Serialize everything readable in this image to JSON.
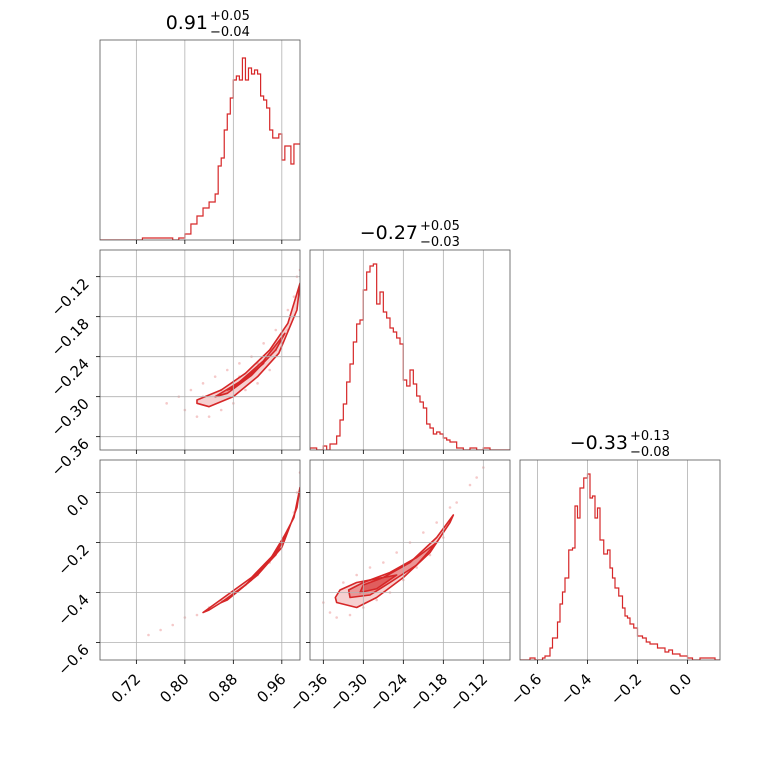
{
  "chart_data": {
    "type": "corner",
    "color": "#d62728",
    "grid": true,
    "parameters": [
      {
        "title": {
          "median": "0.91",
          "upper": "+0.05",
          "lower": "−0.04"
        },
        "range": [
          0.66,
          0.99
        ],
        "ticks": [
          "0.72",
          "0.80",
          "0.88",
          "0.96"
        ],
        "tick_values": [
          0.72,
          0.8,
          0.88,
          0.96
        ],
        "histogram": [
          [
            0.66,
            0.0
          ],
          [
            0.71,
            0.0
          ],
          [
            0.73,
            0.01
          ],
          [
            0.76,
            0.01
          ],
          [
            0.78,
            0.0
          ],
          [
            0.79,
            0.01
          ],
          [
            0.8,
            0.03
          ],
          [
            0.81,
            0.08
          ],
          [
            0.82,
            0.12
          ],
          [
            0.83,
            0.16
          ],
          [
            0.84,
            0.19
          ],
          [
            0.85,
            0.23
          ],
          [
            0.855,
            0.37
          ],
          [
            0.86,
            0.41
          ],
          [
            0.865,
            0.55
          ],
          [
            0.87,
            0.63
          ],
          [
            0.875,
            0.71
          ],
          [
            0.88,
            0.8
          ],
          [
            0.885,
            0.82
          ],
          [
            0.89,
            0.8
          ],
          [
            0.895,
            0.91
          ],
          [
            0.9,
            0.8
          ],
          [
            0.905,
            0.86
          ],
          [
            0.91,
            0.83
          ],
          [
            0.915,
            0.85
          ],
          [
            0.92,
            0.83
          ],
          [
            0.925,
            0.72
          ],
          [
            0.93,
            0.7
          ],
          [
            0.935,
            0.66
          ],
          [
            0.94,
            0.55
          ],
          [
            0.945,
            0.51
          ],
          [
            0.955,
            0.53
          ],
          [
            0.96,
            0.4
          ],
          [
            0.965,
            0.47
          ],
          [
            0.975,
            0.38
          ],
          [
            0.98,
            0.48
          ]
        ]
      },
      {
        "title": {
          "median": "−0.27",
          "upper": "+0.05",
          "lower": "−0.03"
        },
        "range": [
          -0.38,
          -0.08
        ],
        "ticks": [
          "−0.36",
          "−0.30",
          "−0.24",
          "−0.18",
          "−0.12"
        ],
        "tick_values": [
          -0.36,
          -0.3,
          -0.24,
          -0.18,
          -0.12
        ],
        "ytick_labels": [
          "−0.12",
          "−0.18",
          "−0.24",
          "−0.30",
          "−0.36"
        ],
        "ytick_values": [
          -0.12,
          -0.18,
          -0.24,
          -0.3,
          -0.36
        ],
        "histogram": [
          [
            -0.38,
            0.01
          ],
          [
            -0.37,
            0.0
          ],
          [
            -0.36,
            0.02
          ],
          [
            -0.355,
            0.0
          ],
          [
            -0.35,
            0.03
          ],
          [
            -0.34,
            0.07
          ],
          [
            -0.335,
            0.15
          ],
          [
            -0.33,
            0.23
          ],
          [
            -0.325,
            0.34
          ],
          [
            -0.32,
            0.43
          ],
          [
            -0.315,
            0.54
          ],
          [
            -0.31,
            0.63
          ],
          [
            -0.305,
            0.65
          ],
          [
            -0.3,
            0.8
          ],
          [
            -0.295,
            0.89
          ],
          [
            -0.29,
            0.92
          ],
          [
            -0.285,
            0.93
          ],
          [
            -0.28,
            0.73
          ],
          [
            -0.275,
            0.79
          ],
          [
            -0.27,
            0.69
          ],
          [
            -0.265,
            0.66
          ],
          [
            -0.26,
            0.61
          ],
          [
            -0.255,
            0.59
          ],
          [
            -0.25,
            0.56
          ],
          [
            -0.245,
            0.53
          ],
          [
            -0.24,
            0.35
          ],
          [
            -0.235,
            0.32
          ],
          [
            -0.23,
            0.4
          ],
          [
            -0.225,
            0.33
          ],
          [
            -0.22,
            0.27
          ],
          [
            -0.215,
            0.24
          ],
          [
            -0.21,
            0.21
          ],
          [
            -0.205,
            0.13
          ],
          [
            -0.2,
            0.11
          ],
          [
            -0.195,
            0.08
          ],
          [
            -0.19,
            0.09
          ],
          [
            -0.185,
            0.08
          ],
          [
            -0.18,
            0.06
          ],
          [
            -0.175,
            0.05
          ],
          [
            -0.17,
            0.04
          ],
          [
            -0.16,
            0.01
          ],
          [
            -0.15,
            0.0
          ],
          [
            -0.14,
            0.01
          ],
          [
            -0.13,
            0.0
          ],
          [
            -0.12,
            0.01
          ],
          [
            -0.11,
            0.0
          ],
          [
            -0.09,
            0.0
          ]
        ]
      },
      {
        "title": {
          "median": "−0.33",
          "upper": "+0.13",
          "lower": "−0.08"
        },
        "range": [
          -0.67,
          0.13
        ],
        "ticks": [
          "−0.6",
          "−0.4",
          "−0.2",
          "0.0"
        ],
        "tick_values": [
          -0.6,
          -0.4,
          -0.2,
          0.0
        ],
        "ytick_labels": [
          "0.0",
          "−0.2",
          "−0.4",
          "−0.6"
        ],
        "ytick_values": [
          0.0,
          -0.2,
          -0.4,
          -0.6
        ],
        "histogram": [
          [
            -0.67,
            0.0
          ],
          [
            -0.63,
            0.01
          ],
          [
            -0.61,
            0.0
          ],
          [
            -0.58,
            0.01
          ],
          [
            -0.57,
            0.02
          ],
          [
            -0.55,
            0.06
          ],
          [
            -0.54,
            0.11
          ],
          [
            -0.52,
            0.19
          ],
          [
            -0.51,
            0.28
          ],
          [
            -0.5,
            0.34
          ],
          [
            -0.49,
            0.41
          ],
          [
            -0.475,
            0.55
          ],
          [
            -0.46,
            0.56
          ],
          [
            -0.45,
            0.77
          ],
          [
            -0.44,
            0.71
          ],
          [
            -0.43,
            0.86
          ],
          [
            -0.415,
            0.91
          ],
          [
            -0.4,
            0.93
          ],
          [
            -0.39,
            0.81
          ],
          [
            -0.38,
            0.82
          ],
          [
            -0.37,
            0.71
          ],
          [
            -0.36,
            0.76
          ],
          [
            -0.35,
            0.6
          ],
          [
            -0.335,
            0.53
          ],
          [
            -0.32,
            0.55
          ],
          [
            -0.31,
            0.46
          ],
          [
            -0.3,
            0.41
          ],
          [
            -0.29,
            0.36
          ],
          [
            -0.275,
            0.32
          ],
          [
            -0.26,
            0.26
          ],
          [
            -0.25,
            0.22
          ],
          [
            -0.24,
            0.21
          ],
          [
            -0.23,
            0.18
          ],
          [
            -0.215,
            0.16
          ],
          [
            -0.2,
            0.12
          ],
          [
            -0.19,
            0.12
          ],
          [
            -0.18,
            0.11
          ],
          [
            -0.165,
            0.09
          ],
          [
            -0.15,
            0.08
          ],
          [
            -0.135,
            0.08
          ],
          [
            -0.12,
            0.06
          ],
          [
            -0.105,
            0.06
          ],
          [
            -0.09,
            0.04
          ],
          [
            -0.075,
            0.05
          ],
          [
            -0.06,
            0.03
          ],
          [
            -0.045,
            0.03
          ],
          [
            -0.03,
            0.02
          ],
          [
            -0.015,
            0.02
          ],
          [
            0.0,
            0.01
          ],
          [
            0.02,
            0.0
          ],
          [
            0.05,
            0.01
          ],
          [
            0.09,
            0.01
          ],
          [
            0.11,
            0.0
          ]
        ]
      }
    ],
    "pairs": [
      {
        "x_param": 0,
        "y_param": 1,
        "contours": [
          [
            [
              0.82,
              -0.305
            ],
            [
              0.86,
              -0.29
            ],
            [
              0.9,
              -0.265
            ],
            [
              0.94,
              -0.23
            ],
            [
              0.97,
              -0.19
            ],
            [
              0.99,
              -0.13
            ],
            [
              0.985,
              -0.17
            ],
            [
              0.955,
              -0.235
            ],
            [
              0.92,
              -0.27
            ],
            [
              0.88,
              -0.3
            ],
            [
              0.84,
              -0.315
            ],
            [
              0.82,
              -0.31
            ]
          ],
          [
            [
              0.85,
              -0.3
            ],
            [
              0.89,
              -0.278
            ],
            [
              0.93,
              -0.246
            ],
            [
              0.965,
              -0.205
            ],
            [
              0.95,
              -0.23
            ],
            [
              0.91,
              -0.268
            ],
            [
              0.87,
              -0.295
            ]
          ],
          [
            [
              0.87,
              -0.29
            ],
            [
              0.9,
              -0.272
            ],
            [
              0.93,
              -0.25
            ],
            [
              0.91,
              -0.265
            ],
            [
              0.88,
              -0.287
            ]
          ]
        ],
        "scatter": [
          [
            0.77,
            -0.31
          ],
          [
            0.79,
            -0.3
          ],
          [
            0.8,
            -0.32
          ],
          [
            0.81,
            -0.29
          ],
          [
            0.82,
            -0.33
          ],
          [
            0.83,
            -0.28
          ],
          [
            0.84,
            -0.33
          ],
          [
            0.85,
            -0.27
          ],
          [
            0.86,
            -0.32
          ],
          [
            0.87,
            -0.26
          ],
          [
            0.88,
            -0.31
          ],
          [
            0.89,
            -0.25
          ],
          [
            0.9,
            -0.29
          ],
          [
            0.91,
            -0.24
          ],
          [
            0.92,
            -0.28
          ],
          [
            0.93,
            -0.22
          ],
          [
            0.94,
            -0.26
          ],
          [
            0.95,
            -0.2
          ],
          [
            0.96,
            -0.22
          ],
          [
            0.97,
            -0.17
          ],
          [
            0.98,
            -0.15
          ],
          [
            0.985,
            -0.12
          ],
          [
            0.99,
            -0.11
          ],
          [
            0.83,
            -0.3
          ],
          [
            0.86,
            -0.29
          ],
          [
            0.89,
            -0.27
          ],
          [
            0.92,
            -0.25
          ],
          [
            0.95,
            -0.23
          ],
          [
            0.97,
            -0.2
          ]
        ]
      },
      {
        "x_param": 0,
        "y_param": 2,
        "contours": [
          [
            [
              0.83,
              -0.48
            ],
            [
              0.87,
              -0.41
            ],
            [
              0.91,
              -0.34
            ],
            [
              0.95,
              -0.24
            ],
            [
              0.98,
              -0.1
            ],
            [
              0.99,
              0.02
            ],
            [
              0.985,
              -0.06
            ],
            [
              0.96,
              -0.22
            ],
            [
              0.92,
              -0.33
            ],
            [
              0.88,
              -0.41
            ],
            [
              0.84,
              -0.47
            ]
          ],
          [
            [
              0.86,
              -0.44
            ],
            [
              0.9,
              -0.37
            ],
            [
              0.94,
              -0.27
            ],
            [
              0.97,
              -0.15
            ],
            [
              0.95,
              -0.25
            ],
            [
              0.91,
              -0.35
            ],
            [
              0.87,
              -0.43
            ]
          ]
        ],
        "scatter": [
          [
            0.74,
            -0.57
          ],
          [
            0.76,
            -0.55
          ],
          [
            0.78,
            -0.53
          ],
          [
            0.8,
            -0.5
          ],
          [
            0.82,
            -0.49
          ],
          [
            0.84,
            -0.46
          ],
          [
            0.86,
            -0.43
          ],
          [
            0.88,
            -0.4
          ],
          [
            0.9,
            -0.37
          ],
          [
            0.92,
            -0.33
          ],
          [
            0.94,
            -0.28
          ],
          [
            0.96,
            -0.2
          ],
          [
            0.97,
            -0.15
          ],
          [
            0.98,
            -0.08
          ],
          [
            0.985,
            0.0
          ],
          [
            0.99,
            0.08
          ],
          [
            0.99,
            0.14
          ]
        ]
      },
      {
        "x_param": 1,
        "y_param": 2,
        "contours": [
          [
            [
              -0.34,
              -0.44
            ],
            [
              -0.31,
              -0.46
            ],
            [
              -0.28,
              -0.42
            ],
            [
              -0.24,
              -0.34
            ],
            [
              -0.2,
              -0.24
            ],
            [
              -0.17,
              -0.12
            ],
            [
              -0.165,
              -0.09
            ],
            [
              -0.19,
              -0.18
            ],
            [
              -0.23,
              -0.28
            ],
            [
              -0.27,
              -0.34
            ],
            [
              -0.31,
              -0.36
            ],
            [
              -0.335,
              -0.39
            ],
            [
              -0.342,
              -0.42
            ]
          ],
          [
            [
              -0.32,
              -0.42
            ],
            [
              -0.29,
              -0.41
            ],
            [
              -0.26,
              -0.36
            ],
            [
              -0.22,
              -0.29
            ],
            [
              -0.19,
              -0.2
            ],
            [
              -0.22,
              -0.26
            ],
            [
              -0.26,
              -0.32
            ],
            [
              -0.3,
              -0.36
            ],
            [
              -0.322,
              -0.39
            ]
          ],
          [
            [
              -0.305,
              -0.4
            ],
            [
              -0.28,
              -0.385
            ],
            [
              -0.25,
              -0.33
            ],
            [
              -0.27,
              -0.34
            ],
            [
              -0.3,
              -0.37
            ]
          ]
        ],
        "scatter": [
          [
            -0.36,
            -0.44
          ],
          [
            -0.35,
            -0.48
          ],
          [
            -0.34,
            -0.5
          ],
          [
            -0.33,
            -0.36
          ],
          [
            -0.32,
            -0.49
          ],
          [
            -0.31,
            -0.33
          ],
          [
            -0.3,
            -0.46
          ],
          [
            -0.29,
            -0.3
          ],
          [
            -0.28,
            -0.43
          ],
          [
            -0.27,
            -0.28
          ],
          [
            -0.26,
            -0.4
          ],
          [
            -0.25,
            -0.24
          ],
          [
            -0.24,
            -0.35
          ],
          [
            -0.23,
            -0.2
          ],
          [
            -0.22,
            -0.3
          ],
          [
            -0.21,
            -0.16
          ],
          [
            -0.2,
            -0.25
          ],
          [
            -0.19,
            -0.12
          ],
          [
            -0.18,
            -0.18
          ],
          [
            -0.17,
            -0.06
          ],
          [
            -0.16,
            -0.04
          ],
          [
            -0.14,
            0.03
          ],
          [
            -0.13,
            0.06
          ],
          [
            -0.12,
            0.1
          ]
        ]
      }
    ]
  }
}
